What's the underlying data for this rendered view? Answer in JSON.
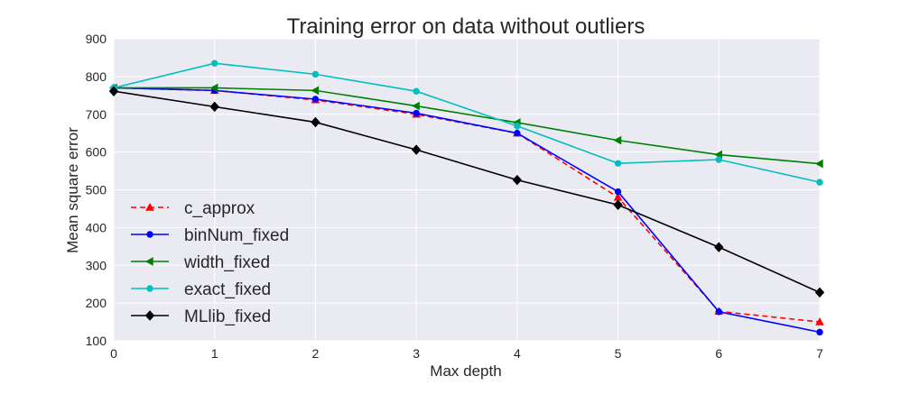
{
  "chart_data": {
    "type": "line",
    "title": "Training error on data without outliers",
    "xlabel": "Max depth",
    "ylabel": "Mean square error",
    "x": [
      0,
      1,
      2,
      3,
      4,
      5,
      6,
      7
    ],
    "xlim": [
      0,
      7
    ],
    "ylim": [
      100,
      900
    ],
    "xticks": [
      "0",
      "1",
      "2",
      "3",
      "4",
      "5",
      "6",
      "7"
    ],
    "yticks": [
      "100",
      "200",
      "300",
      "400",
      "500",
      "600",
      "700",
      "800",
      "900"
    ],
    "grid": true,
    "legend_position": "lower-left",
    "series": [
      {
        "name": "c_approx",
        "color": "#ff0000",
        "dash": true,
        "marker": "triangle",
        "values": [
          770,
          763,
          738,
          700,
          650,
          480,
          178,
          150
        ]
      },
      {
        "name": "binNum_fixed",
        "color": "#0000ff",
        "dash": false,
        "marker": "circle",
        "values": [
          770,
          763,
          740,
          703,
          650,
          495,
          177,
          123
        ]
      },
      {
        "name": "width_fixed",
        "color": "#008000",
        "dash": false,
        "marker": "triangle-left",
        "values": [
          770,
          770,
          763,
          722,
          678,
          631,
          593,
          569
        ]
      },
      {
        "name": "exact_fixed",
        "color": "#00bfbf",
        "dash": false,
        "marker": "circle",
        "values": [
          770,
          835,
          806,
          761,
          669,
          570,
          580,
          520
        ]
      },
      {
        "name": "MLlib_fixed",
        "color": "#000000",
        "dash": false,
        "marker": "diamond",
        "values": [
          761,
          720,
          679,
          606,
          526,
          460,
          348,
          228
        ]
      }
    ]
  }
}
